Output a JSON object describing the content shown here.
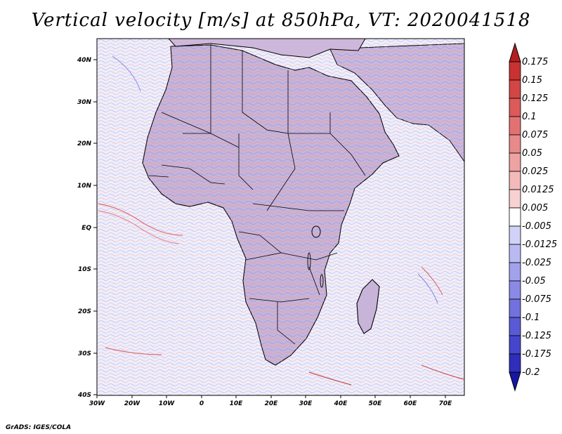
{
  "title": "Vertical velocity [m/s] at 850hPa, VT: 2020041518",
  "credit": "GrADS: IGES/COLA",
  "map": {
    "region": "Africa",
    "variable": "Vertical velocity",
    "level": "850hPa",
    "lat_range": [
      -40,
      45
    ],
    "lon_range": [
      -30,
      76
    ],
    "lat_ticks": [
      "40N",
      "30N",
      "20N",
      "10N",
      "EQ",
      "10S",
      "20S",
      "30S",
      "40S"
    ],
    "lon_ticks": [
      "30W",
      "20W",
      "10W",
      "0",
      "10E",
      "20E",
      "30E",
      "40E",
      "50E",
      "60E",
      "70E"
    ]
  },
  "colorbar": {
    "labels": [
      "0.175",
      "0.15",
      "0.125",
      "0.1",
      "0.075",
      "0.05",
      "0.025",
      "0.0125",
      "0.005",
      "-0.005",
      "-0.0125",
      "-0.025",
      "-0.05",
      "-0.075",
      "-0.1",
      "-0.125",
      "-0.175",
      "-0.2"
    ],
    "colors": [
      "#b41e1e",
      "#c83232",
      "#d24646",
      "#dc5a5a",
      "#e27272",
      "#e88a8a",
      "#eea2a2",
      "#f4baba",
      "#f8d2d2",
      "#ffffff",
      "#d2d2f8",
      "#babaf2",
      "#a2a2ec",
      "#8a8ae6",
      "#7272de",
      "#5a5ad6",
      "#4646cc",
      "#2e2eba",
      "#1616a4"
    ]
  }
}
